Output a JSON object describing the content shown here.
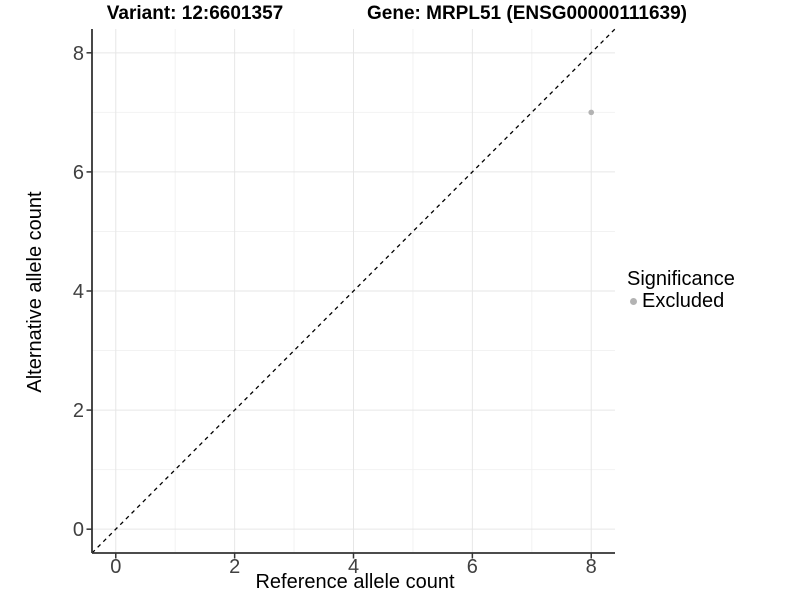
{
  "chart_data": {
    "type": "scatter",
    "title_left": "Variant: 12:6601357",
    "title_right": "Gene: MRPL51 (ENSG00000111639)",
    "xlabel": "Reference allele count",
    "ylabel": "Alternative allele count",
    "xlim": [
      -0.4,
      8.4
    ],
    "ylim": [
      -0.4,
      8.4
    ],
    "x_ticks": [
      0,
      2,
      4,
      6,
      8
    ],
    "y_ticks": [
      0,
      2,
      4,
      6,
      8
    ],
    "x_minor_ticks": [
      1,
      3,
      5,
      7
    ],
    "y_minor_ticks": [
      1,
      3,
      5,
      7
    ],
    "grid": "major+minor",
    "points": [
      {
        "x": 8,
        "y": 7,
        "series": "Excluded"
      }
    ],
    "identity_line": {
      "style": "dashed",
      "from": -0.4,
      "to": 8.4
    },
    "legend": {
      "title": "Significance",
      "position": "right",
      "items": [
        {
          "label": "Excluded",
          "color": "#b3b3b3"
        }
      ]
    },
    "colors": {
      "point": "#b3b3b3",
      "grid_major": "#e6e6e6",
      "grid_minor": "#f2f2f2",
      "axis": "#333333",
      "tick_label": "#404040",
      "identity_line": "#000000",
      "background": "#ffffff"
    }
  }
}
